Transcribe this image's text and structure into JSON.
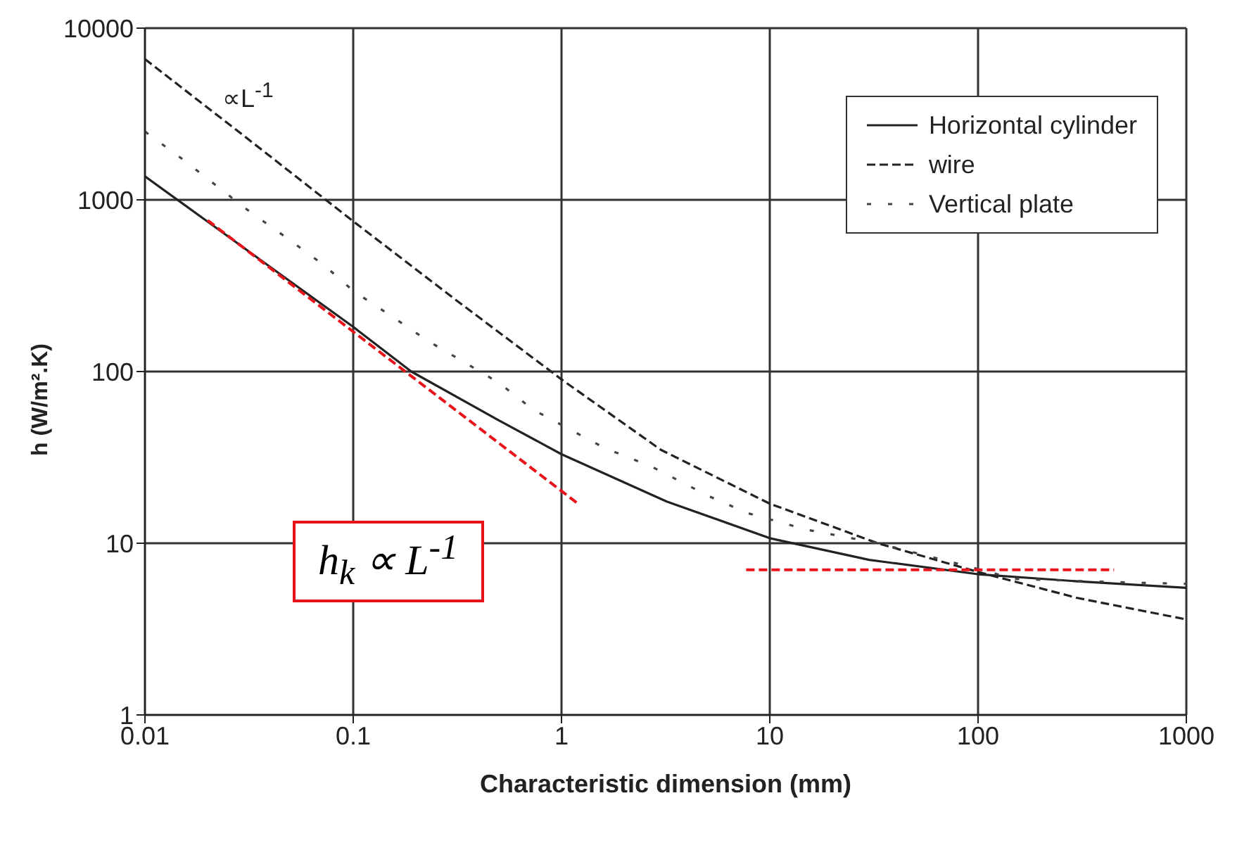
{
  "chart_data": {
    "type": "line",
    "xlabel": "Characteristic dimension (mm)",
    "ylabel": "h (W/m².K)",
    "log": "xy",
    "xlim": [
      0.01,
      1000
    ],
    "xticks": [
      0.01,
      0.1,
      1,
      10,
      100,
      1000
    ],
    "ylim": [
      1,
      10000
    ],
    "yticks": [
      1,
      10,
      100,
      1000,
      10000
    ],
    "grid": true,
    "legend": "top right",
    "marker": "none",
    "annotations": [
      "∝L$^{-1}$",
      "h$_{k}$ ∝ L$^{-1}$"
    ],
    "series": [
      {
        "name": "Horizontal cylinder",
        "color": "#222222",
        "line_style": "solid",
        "x": [
          0.01,
          0.02,
          0.05,
          0.1,
          0.19,
          0.5,
          1,
          3.2,
          10,
          30,
          100,
          300,
          1000
        ],
        "values": [
          1370,
          746,
          334,
          182,
          100,
          52,
          33,
          17.5,
          10.7,
          8,
          6.6,
          6,
          5.5
        ]
      },
      {
        "name": "wire",
        "color": "#222222",
        "line_style": "dashed",
        "x": [
          0.01,
          0.03,
          0.1,
          0.3,
          1,
          3,
          10,
          33,
          100,
          300,
          1000
        ],
        "values": [
          6600,
          2350,
          750,
          270,
          90,
          35,
          17,
          10,
          6.8,
          4.8,
          3.6
        ]
      },
      {
        "name": "Vertical plate",
        "color": "#444444",
        "line_style": "dotted",
        "x": [
          0.01,
          0.015,
          0.022,
          0.032,
          0.048,
          0.073,
          0.1,
          0.15,
          0.23,
          0.33,
          0.5,
          0.73,
          1.6,
          2.7,
          5.1,
          7.8,
          15,
          33,
          80,
          150,
          540,
          1000
        ],
        "values": [
          2500,
          1740,
          1210,
          850,
          600,
          413,
          295,
          213,
          150,
          116,
          86,
          60,
          36,
          28,
          18.8,
          15,
          12,
          10,
          7.6,
          6.2,
          5.9,
          5.8
        ]
      },
      {
        "type": "line",
        "color": "#e8141c",
        "line_style": "dashed",
        "x": [
          0.02,
          1.2
        ],
        "values": [
          760,
          17
        ]
      },
      {
        "type": "line",
        "color": "#e8141c",
        "line_style": "dashed",
        "x": [
          7.7,
          450
        ],
        "values": [
          7,
          7
        ]
      }
    ]
  }
}
